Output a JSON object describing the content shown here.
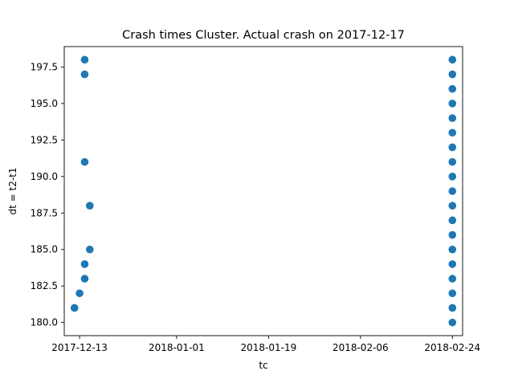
{
  "chart_data": {
    "type": "scatter",
    "title": "Crash times Cluster. Actual crash on 2017-12-17",
    "xlabel": "tc",
    "ylabel": "dt = t2-t1",
    "x_axis_type": "date",
    "xlim": [
      "2017-12-10",
      "2018-02-26"
    ],
    "ylim": [
      179.1,
      198.9
    ],
    "x_ticks": [
      "2017-12-13",
      "2018-01-01",
      "2018-01-19",
      "2018-02-06",
      "2018-02-24"
    ],
    "y_ticks": [
      "180.0",
      "182.5",
      "185.0",
      "187.5",
      "190.0",
      "192.5",
      "195.0",
      "197.5"
    ],
    "grid": false,
    "legend": "none",
    "marker_color": "#1f77b4",
    "series": [
      {
        "points": [
          {
            "x": "2017-12-12",
            "y": 181
          },
          {
            "x": "2017-12-13",
            "y": 182
          },
          {
            "x": "2017-12-14",
            "y": 183
          },
          {
            "x": "2017-12-14",
            "y": 184
          },
          {
            "x": "2017-12-15",
            "y": 185
          },
          {
            "x": "2017-12-15",
            "y": 188
          },
          {
            "x": "2017-12-14",
            "y": 191
          },
          {
            "x": "2017-12-14",
            "y": 197
          },
          {
            "x": "2017-12-14",
            "y": 198
          },
          {
            "x": "2018-02-24",
            "y": 180
          },
          {
            "x": "2018-02-24",
            "y": 181
          },
          {
            "x": "2018-02-24",
            "y": 182
          },
          {
            "x": "2018-02-24",
            "y": 183
          },
          {
            "x": "2018-02-24",
            "y": 184
          },
          {
            "x": "2018-02-24",
            "y": 185
          },
          {
            "x": "2018-02-24",
            "y": 186
          },
          {
            "x": "2018-02-24",
            "y": 187
          },
          {
            "x": "2018-02-24",
            "y": 188
          },
          {
            "x": "2018-02-24",
            "y": 189
          },
          {
            "x": "2018-02-24",
            "y": 190
          },
          {
            "x": "2018-02-24",
            "y": 191
          },
          {
            "x": "2018-02-24",
            "y": 192
          },
          {
            "x": "2018-02-24",
            "y": 193
          },
          {
            "x": "2018-02-24",
            "y": 194
          },
          {
            "x": "2018-02-24",
            "y": 195
          },
          {
            "x": "2018-02-24",
            "y": 196
          },
          {
            "x": "2018-02-24",
            "y": 197
          },
          {
            "x": "2018-02-24",
            "y": 198
          }
        ]
      }
    ]
  }
}
